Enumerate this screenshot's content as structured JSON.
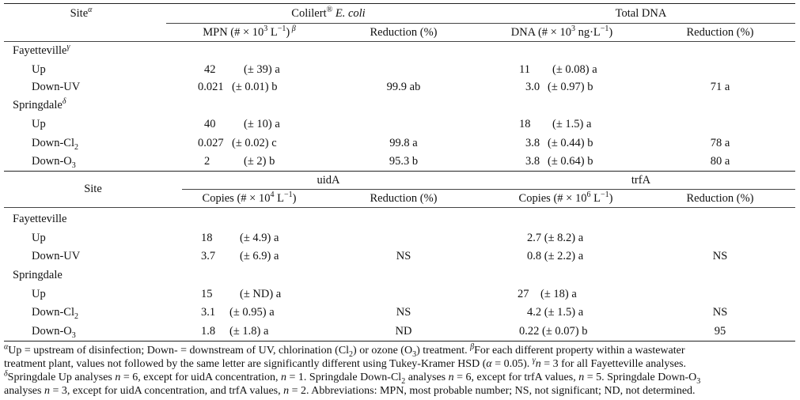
{
  "table1": {
    "header": {
      "site": "Site",
      "site_sup": "α",
      "group1_pre": "Colilert",
      "group1_reg": "®",
      "group1_italic": " E. coli",
      "group2": "Total DNA",
      "mpn_label": "MPN (# × 10",
      "mpn_exp": "3",
      "mpn_unit": " L",
      "mpn_unit_exp": "−1",
      "mpn_close": ")",
      "mpn_sup": " β",
      "reduction1": "Reduction (%)",
      "dna_label": "DNA (# × 10",
      "dna_exp": "3",
      "dna_unit": " ng·L",
      "dna_unit_exp": "−1",
      "dna_close": ")",
      "reduction2": "Reduction (%)"
    },
    "fayetteville": {
      "name": "Fayetteville",
      "sup": "γ"
    },
    "springdale": {
      "name": "Springdale",
      "sup": "δ"
    },
    "rows": [
      {
        "label": "Up",
        "sub": "",
        "mpn": "42",
        "mpn_ci": "(± 39) a",
        "red1": "",
        "dna": "11",
        "dna_ci": "(± 0.08) a",
        "red2": ""
      },
      {
        "label": "Down-UV",
        "sub": "",
        "mpn": "0.021",
        "mpn_ci": "(± 0.01) b",
        "red1": "99.9 ab",
        "dna": "3.0",
        "dna_ci": "(± 0.97) b",
        "red2": "71 a"
      },
      {
        "label": "Up",
        "sub": "",
        "mpn": "40",
        "mpn_ci": "(± 10) a",
        "red1": "",
        "dna": "18",
        "dna_ci": "(± 1.5) a",
        "red2": ""
      },
      {
        "label": "Down-Cl",
        "sub": "2",
        "mpn": "0.027",
        "mpn_ci": "(± 0.02) c",
        "red1": "99.8 a",
        "dna": "3.8",
        "dna_ci": "(± 0.44) b",
        "red2": "78 a"
      },
      {
        "label": "Down-O",
        "sub": "3",
        "mpn": "2",
        "mpn_ci": "(± 2) b",
        "red1": "95.3 b",
        "dna": "3.8",
        "dna_ci": "(± 0.64) b",
        "red2": "80 a"
      }
    ]
  },
  "table2": {
    "header": {
      "site": "Site",
      "group1": "uidA",
      "group2": "trfA",
      "copies1_label": "Copies (# × 10",
      "copies1_exp": "4",
      "copies1_unit": " L",
      "copies1_unit_exp": "−1",
      "copies1_close": ")",
      "reduction1": "Reduction (%)",
      "copies2_label": "Copies (# × 10",
      "copies2_exp": "6",
      "copies2_unit": " L",
      "copies2_unit_exp": "−1",
      "copies2_close": ")",
      "reduction2": "Reduction (%)"
    },
    "fayetteville": {
      "name": "Fayetteville"
    },
    "springdale": {
      "name": "Springdale"
    },
    "rows": [
      {
        "label": "Up",
        "sub": "",
        "c1": "18",
        "c1_ci": "(± 4.9) a",
        "red1": "",
        "c2": "2.7 (± 8.2) a",
        "red2": ""
      },
      {
        "label": "Down-UV",
        "sub": "",
        "c1": "3.7",
        "c1_ci": "(± 6.9) a",
        "red1": "NS",
        "c2": "0.8 (± 2.2) a",
        "red2": "NS"
      },
      {
        "label": "Up",
        "sub": "",
        "c1": "15",
        "c1_ci": "(± ND) a",
        "red1": "",
        "c2": "27    (± 18) a",
        "red2": ""
      },
      {
        "label": "Down-Cl",
        "sub": "2",
        "c1": "3.1",
        "c1_ci": "(± 0.95) a",
        "red1": "NS",
        "c2": "4.2 (± 1.5) a",
        "red2": "NS"
      },
      {
        "label": "Down-O",
        "sub": "3",
        "c1": "1.8",
        "c1_ci": "(± 1.8) a",
        "red1": "ND",
        "c2": "0.22 (± 0.07) b",
        "red2": "95"
      }
    ]
  },
  "footnotes": {
    "l1a": "α",
    "l1b": "Up = upstream of disinfection; Down- = downstream of UV, chlorination (Cl",
    "l1c": "2",
    "l1d": ") or ozone (O",
    "l1e": "3",
    "l1f": ") treatment. ",
    "l1g": "β",
    "l1h": "For each different property within a wastewater",
    "l2a": "treatment plant, values not followed by the same letter are significantly different using Tukey-Kramer HSD (",
    "l2b": "α",
    "l2c": " = 0.05). ",
    "l2d": "γ",
    "l2e": "n",
    "l2f": " = 3 for all Fayetteville analyses.",
    "l3a": "δ",
    "l3b": "Springdale Up analyses ",
    "l3c": "n",
    "l3d": " = 6, except for uidA concentration, ",
    "l3e": "n",
    "l3f": " = 1. Springdale Down-Cl",
    "l3g": "2",
    "l3h": " analyses ",
    "l3i": "n",
    "l3j": " = 6, except for trfA values, ",
    "l3k": "n",
    "l3l": " = 5. Springdale Down-O",
    "l3m": "3",
    "l4a": "analyses ",
    "l4b": "n",
    "l4c": " = 3, except for uidA concentration, and trfA values, ",
    "l4d": "n",
    "l4e": " = 2. Abbreviations: MPN, most probable number; NS, not significant; ND, not determined."
  }
}
